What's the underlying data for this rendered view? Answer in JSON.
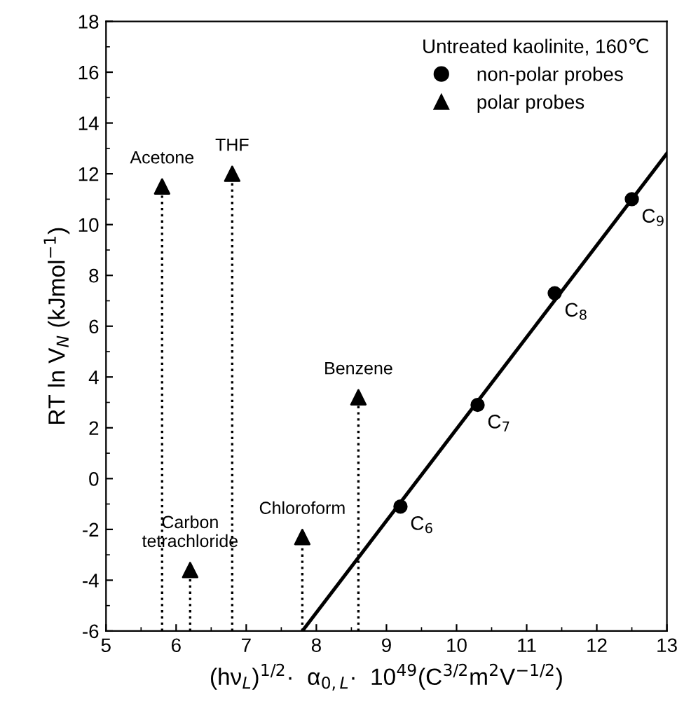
{
  "chart_data": {
    "type": "scatter",
    "xlabel": "(hν$_{L}$)$^{1/2}$·  α$_{0,L}$·  10$^{49}$(C$^{3/2}$m$^{2}$V$^{−1/2}$)",
    "ylabel": "RT ln V$_{N}$ (kJmol$^{−1}$)",
    "legend_title": "Untreated kaolinite, 160℃",
    "legend": "top right",
    "xlim": [
      5,
      13
    ],
    "xticks": [
      5,
      6,
      7,
      8,
      9,
      10,
      11,
      12,
      13
    ],
    "ylim": [
      -6,
      18
    ],
    "yticks": [
      -6,
      -4,
      -2,
      0,
      2,
      4,
      6,
      8,
      10,
      12,
      14,
      16,
      18
    ],
    "grid": false,
    "series": [
      {
        "name": "non-polar probes",
        "marker": "circle",
        "color": "#000000",
        "x": [
          9.2,
          10.3,
          11.4,
          12.5
        ],
        "values": [
          -1.1,
          2.9,
          7.3,
          11.0
        ]
      },
      {
        "name": "polar probes",
        "marker": "triangle",
        "line_style": "dotted",
        "color": "#000000",
        "x": [
          5.8,
          6.8,
          6.2,
          7.8,
          8.6
        ],
        "values": [
          11.5,
          12.0,
          -3.6,
          -2.3,
          3.2
        ],
        "errors": [
          [
            -6,
            11.5
          ],
          [
            -6,
            12.0
          ],
          [
            -6,
            -3.6
          ],
          [
            -6,
            -2.3
          ],
          [
            -6,
            3.2
          ]
        ]
      },
      {
        "type": "line",
        "marker": "none",
        "line_style": "solid",
        "color": "#000000",
        "x": [
          7.8,
          13
        ],
        "values": [
          -6,
          12.8
        ]
      }
    ],
    "annotations": [
      {
        "text": "C$_{6}$",
        "x": 9.2,
        "y": -1.1
      },
      {
        "text": "C$_{7}$",
        "x": 10.3,
        "y": 2.9
      },
      {
        "text": "C$_{8}$",
        "x": 11.4,
        "y": 7.3
      },
      {
        "text": "C$_{9}$",
        "x": 12.5,
        "y": 11.0
      },
      {
        "text": "Acetone",
        "x": 5.8,
        "y": 11.5
      },
      {
        "text": "THF",
        "x": 6.8,
        "y": 12.0
      },
      {
        "text": "Carbon\ntetrachloride",
        "x": 6.2,
        "y": -3.6
      },
      {
        "text": "Chloroform",
        "x": 7.8,
        "y": -2.3
      },
      {
        "text": "Benzene",
        "x": 8.6,
        "y": 3.2
      }
    ]
  }
}
